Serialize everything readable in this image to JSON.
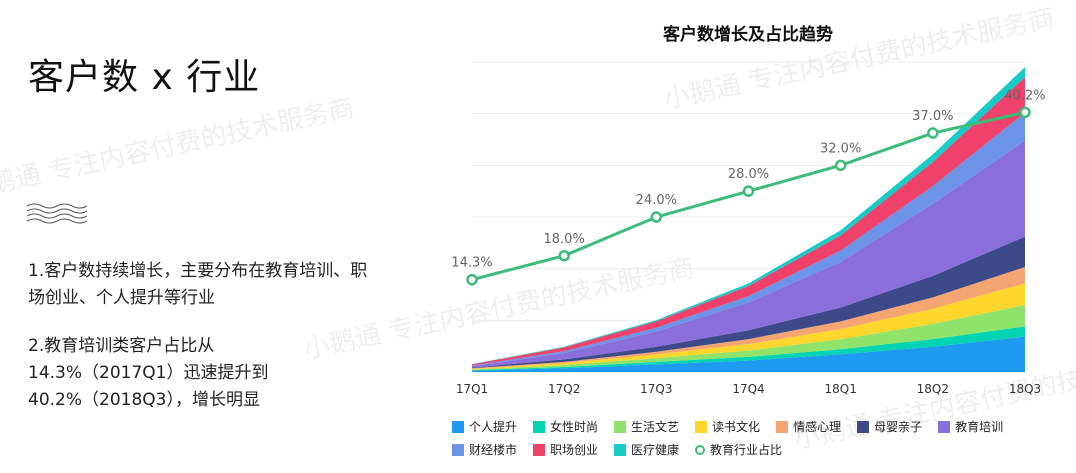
{
  "page": {
    "title": "客户数 x 行业",
    "bullets": [
      "1.客户数持续增长，主要分布在教育培训、职场创业、个人提升等行业",
      "2.教育培训类客户占比从14.3%（2017Q1）迅速提升到40.2%（2018Q3），增长明显"
    ],
    "watermark": "小鹅通 专注内容付费的技术服务商"
  },
  "chart_data": {
    "type": "area",
    "title": "客户数增长及占比趋势",
    "categories": [
      "17Q1",
      "17Q2",
      "17Q3",
      "17Q4",
      "18Q1",
      "18Q2",
      "18Q3"
    ],
    "series": [
      {
        "name": "个人提升",
        "color": "#1e9bf0",
        "values": [
          1,
          3,
          6,
          9,
          14,
          20,
          28
        ]
      },
      {
        "name": "女性时尚",
        "color": "#00d4b0",
        "values": [
          0.5,
          1,
          2,
          3,
          4,
          6,
          8
        ]
      },
      {
        "name": "生活文艺",
        "color": "#8fe36a",
        "values": [
          0.5,
          1.5,
          3,
          5,
          8,
          12,
          17
        ]
      },
      {
        "name": "读书文化",
        "color": "#ffd62b",
        "values": [
          0.5,
          1.5,
          3,
          5,
          8,
          12,
          17
        ]
      },
      {
        "name": "情感心理",
        "color": "#f5a572",
        "values": [
          0.5,
          1,
          2,
          4,
          6,
          9,
          13
        ]
      },
      {
        "name": "母婴亲子",
        "color": "#3d4a8a",
        "values": [
          0.5,
          2,
          4,
          7,
          11,
          17,
          24
        ]
      },
      {
        "name": "教育培训",
        "color": "#8a6fdc",
        "values": [
          1,
          5,
          12,
          22,
          36,
          57,
          76
        ]
      },
      {
        "name": "财经楼市",
        "color": "#6b93e6",
        "values": [
          0.5,
          1.5,
          3,
          5,
          9,
          14,
          22
        ]
      },
      {
        "name": "职场创业",
        "color": "#f0416a",
        "values": [
          1,
          3,
          5,
          8,
          12,
          19,
          28
        ]
      },
      {
        "name": "医疗健康",
        "color": "#17ccc8",
        "values": [
          0.3,
          0.5,
          1,
          2,
          4,
          6,
          8
        ]
      }
    ],
    "line": {
      "name": "教育行业占比",
      "color": "#3dbb79",
      "values": [
        14.3,
        18.0,
        24.0,
        28.0,
        32.0,
        37.0,
        40.2
      ],
      "labels": [
        "14.3%",
        "18.0%",
        "24.0%",
        "28.0%",
        "32.0%",
        "37.0%",
        "40.2%"
      ]
    },
    "area_ylim": [
      0,
      245
    ],
    "line_ylim": [
      0,
      48
    ],
    "grid": true,
    "legend_position": "bottom"
  }
}
